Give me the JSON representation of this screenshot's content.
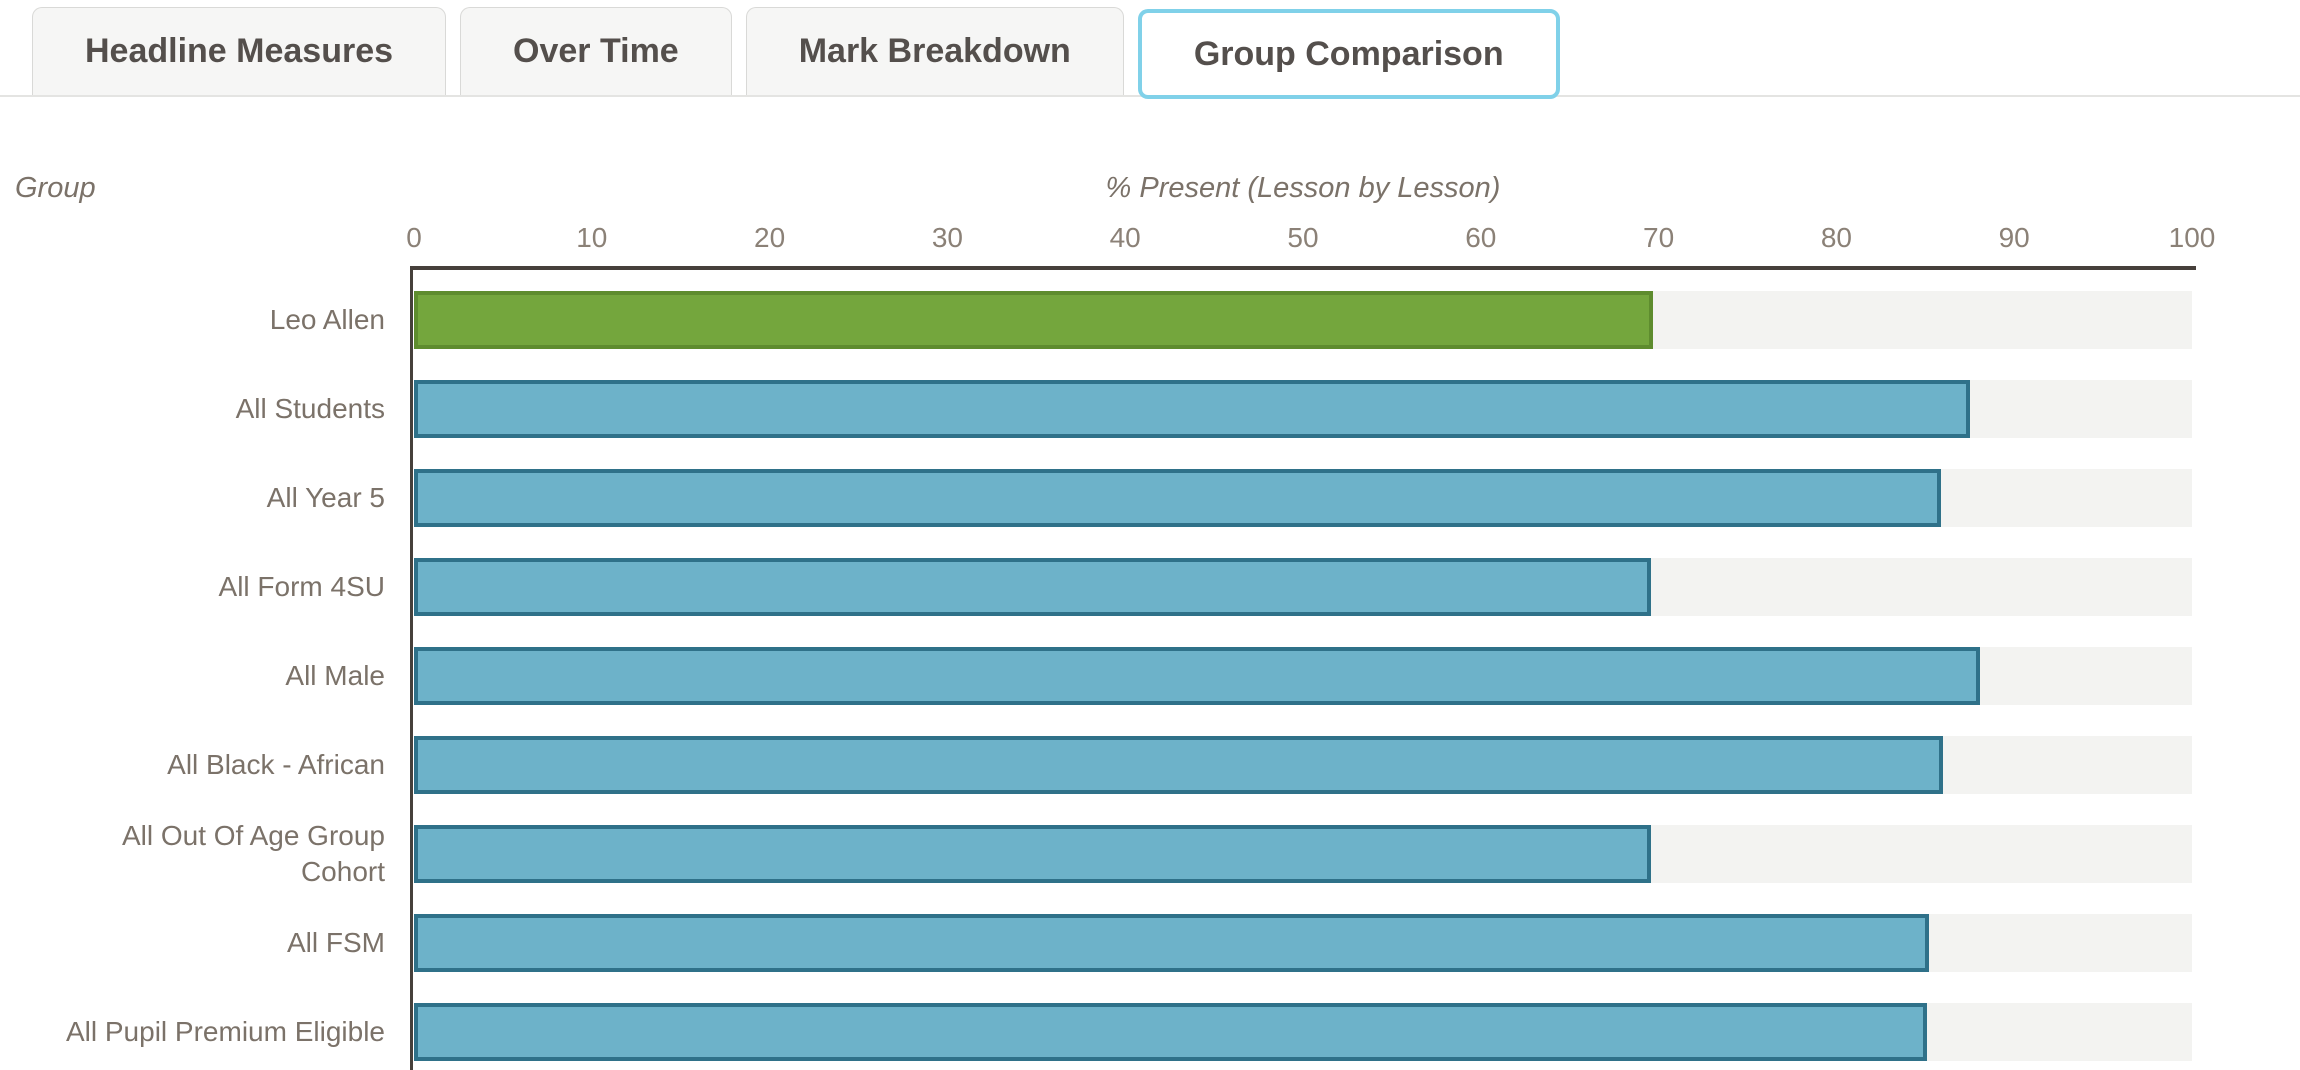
{
  "tabs": [
    {
      "label": "Headline Measures",
      "active": false
    },
    {
      "label": "Over Time",
      "active": false
    },
    {
      "label": "Mark Breakdown",
      "active": false
    },
    {
      "label": "Group Comparison",
      "active": true
    }
  ],
  "chart_data": {
    "type": "bar",
    "orientation": "horizontal",
    "ylabel": "Group",
    "xlabel": "% Present (Lesson by Lesson)",
    "categories": [
      "Leo Allen",
      "All Students",
      "All Year 5",
      "All Form 4SU",
      "All Male",
      "All Black - African",
      "All Out Of Age Group Cohort",
      "All FSM",
      "All Pupil Premium Eligible"
    ],
    "values": [
      69.7,
      87.5,
      85.9,
      69.6,
      88.1,
      86.0,
      69.6,
      85.2,
      85.1
    ],
    "xlim": [
      0,
      100
    ],
    "xticks": [
      0,
      10,
      20,
      30,
      40,
      50,
      60,
      70,
      80,
      90,
      100
    ],
    "grid": false,
    "legend": false,
    "highlight_index": 0,
    "colors": {
      "highlight_fill": "#74a63d",
      "highlight_border": "#5e8c2e",
      "bar_fill": "#6db2c9",
      "bar_border": "#2f7189",
      "track": "#f3f3f1",
      "axis_line": "#46403b",
      "tick_text": "#8b8177",
      "label_text": "#7b7269",
      "active_tab_border": "#80d1e9"
    }
  }
}
